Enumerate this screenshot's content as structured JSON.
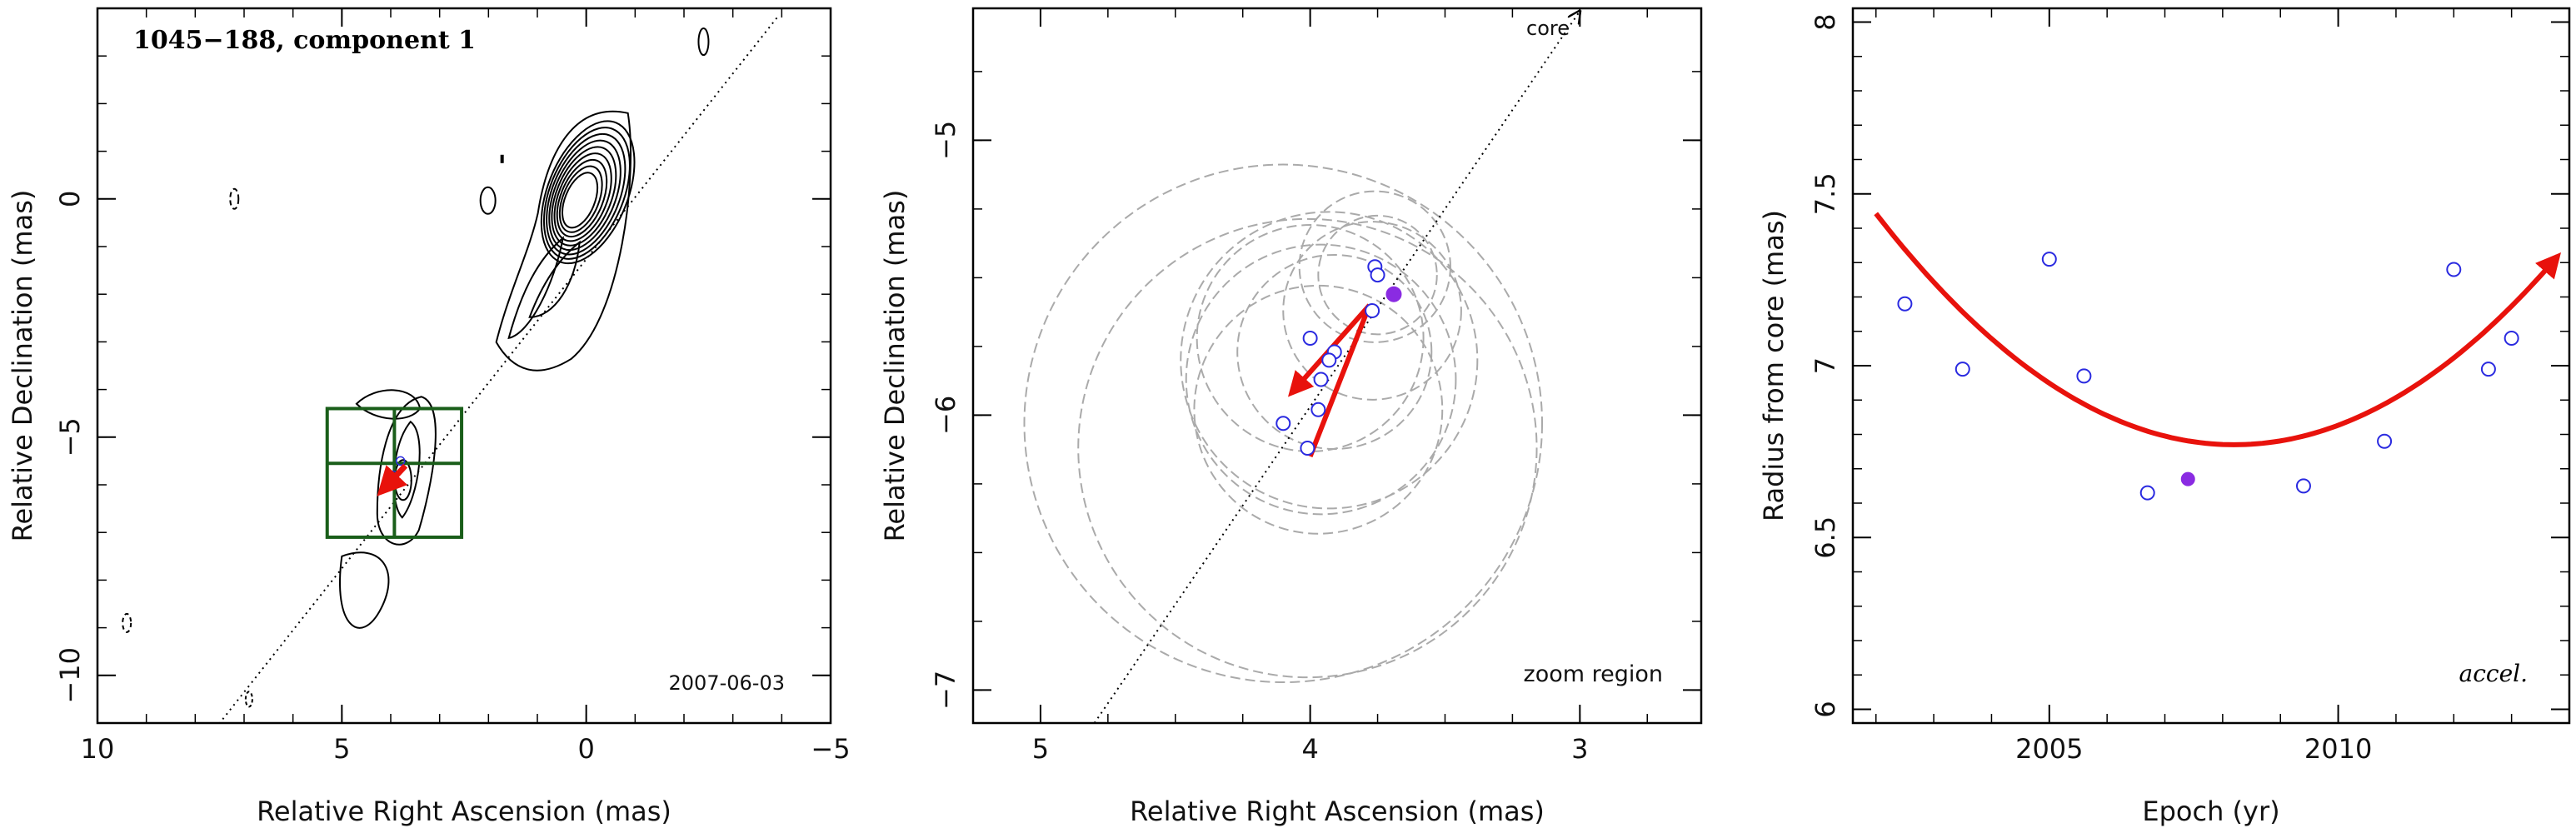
{
  "chart_data": [
    {
      "type": "contour",
      "title": "1045−188, component 1",
      "annotation": "2007-06-03",
      "xlabel": "Relative Right Ascension (mas)",
      "ylabel": "Relative Declination (mas)",
      "xlim": [
        10,
        -5
      ],
      "ylim": [
        -11,
        4
      ],
      "xticks": [
        10,
        5,
        0,
        -5
      ],
      "xtick_labels": [
        "10",
        "5",
        "0",
        "−5"
      ],
      "yticks": [
        -10,
        -5,
        0
      ],
      "ytick_labels": [
        "−10",
        "−5",
        "0"
      ],
      "colors": {
        "contour": "#000000",
        "box": "#1a5e1a",
        "arrow": "#e8120c",
        "point": "#2a2ae0"
      },
      "core": [
        0,
        0
      ],
      "jet_direction_line": {
        "x": [
          -3.9,
          7.5
        ],
        "y": [
          3.8,
          -11
        ]
      },
      "contour_levels_core": 9,
      "zoom_box": {
        "x": [
          2.55,
          5.3
        ],
        "y": [
          -7.1,
          -4.4
        ],
        "mid_y": -5.55
      },
      "component_points": [
        [
          3.8,
          -5.5
        ],
        [
          3.95,
          -5.8
        ]
      ],
      "motion_arrow": {
        "from": [
          3.7,
          -5.6
        ],
        "to": [
          4.2,
          -6.15
        ]
      }
    },
    {
      "type": "scatter",
      "annotation": "zoom region",
      "core_label": "core",
      "xlabel": "Relative Right Ascension (mas)",
      "ylabel": "Relative Declination (mas)",
      "xlim": [
        5.25,
        2.55
      ],
      "ylim": [
        -7.12,
        -4.52
      ],
      "xticks": [
        5,
        4,
        3
      ],
      "xtick_labels": [
        "5",
        "4",
        "3"
      ],
      "yticks": [
        -7,
        -6,
        -5
      ],
      "ytick_labels": [
        "−7",
        "−6",
        "−5"
      ],
      "colors": {
        "circles": "#aaaaaa",
        "points": "#2a2ae0",
        "highlight": "#8a2be2",
        "arrow": "#e8120c"
      },
      "points": [
        {
          "x": 3.76,
          "y": -5.46
        },
        {
          "x": 3.75,
          "y": -5.49
        },
        {
          "x": 3.77,
          "y": -5.62
        },
        {
          "x": 4.0,
          "y": -5.72
        },
        {
          "x": 3.91,
          "y": -5.77
        },
        {
          "x": 3.93,
          "y": -5.8
        },
        {
          "x": 3.96,
          "y": -5.87
        },
        {
          "x": 3.97,
          "y": -5.98
        },
        {
          "x": 4.1,
          "y": -6.03
        },
        {
          "x": 4.01,
          "y": -6.12
        }
      ],
      "highlight_point": {
        "x": 3.69,
        "y": -5.56
      },
      "uncertainty_circles": [
        {
          "x": 3.76,
          "y": -5.46,
          "r": 0.28
        },
        {
          "x": 3.75,
          "y": -5.49,
          "r": 0.22
        },
        {
          "x": 3.77,
          "y": -5.62,
          "r": 0.33
        },
        {
          "x": 4.0,
          "y": -5.72,
          "r": 0.42
        },
        {
          "x": 3.91,
          "y": -5.77,
          "r": 0.36
        },
        {
          "x": 3.93,
          "y": -5.8,
          "r": 0.55
        },
        {
          "x": 3.96,
          "y": -5.87,
          "r": 0.5
        },
        {
          "x": 3.97,
          "y": -5.98,
          "r": 0.46
        },
        {
          "x": 4.1,
          "y": -6.03,
          "r": 0.96
        },
        {
          "x": 4.01,
          "y": -6.12,
          "r": 0.85
        }
      ],
      "jet_direction_line": {
        "x": [
          4.8,
          3.0
        ],
        "y": [
          -7.12,
          -4.53
        ]
      },
      "motion_arrow": {
        "from": [
          3.78,
          -5.6
        ],
        "to": [
          4.07,
          -5.92
        ]
      },
      "motion_line": {
        "from": [
          3.78,
          -5.6
        ],
        "to": [
          4.0,
          -6.15
        ]
      }
    },
    {
      "type": "scatter",
      "annotation": "accel.",
      "xlabel": "Epoch (yr)",
      "ylabel": "Radius from core (mas)",
      "xlim": [
        2001.6,
        2014.0
      ],
      "ylim": [
        5.96,
        8.04
      ],
      "xticks": [
        2005,
        2010
      ],
      "xtick_labels": [
        "2005",
        "2010"
      ],
      "yticks": [
        6,
        6.5,
        7,
        7.5,
        8
      ],
      "ytick_labels": [
        "6",
        "6.5",
        "7",
        "7.5",
        "8"
      ],
      "colors": {
        "points": "#2a2ae0",
        "highlight": "#8a2be2",
        "fit": "#e8120c"
      },
      "points": [
        {
          "x": 2002.5,
          "y": 7.18
        },
        {
          "x": 2003.5,
          "y": 6.99
        },
        {
          "x": 2005.0,
          "y": 7.31
        },
        {
          "x": 2005.6,
          "y": 6.97
        },
        {
          "x": 2006.7,
          "y": 6.63
        },
        {
          "x": 2009.4,
          "y": 6.65
        },
        {
          "x": 2010.8,
          "y": 6.78
        },
        {
          "x": 2012.0,
          "y": 7.28
        },
        {
          "x": 2012.6,
          "y": 6.99
        },
        {
          "x": 2013.0,
          "y": 7.08
        }
      ],
      "highlight_point": {
        "x": 2007.4,
        "y": 6.67
      },
      "fit_curve": {
        "model": "quadratic",
        "x_range": [
          2002.0,
          2013.8
        ],
        "vertex": [
          2008.2,
          6.77
        ],
        "a": 0.0175
      }
    }
  ]
}
